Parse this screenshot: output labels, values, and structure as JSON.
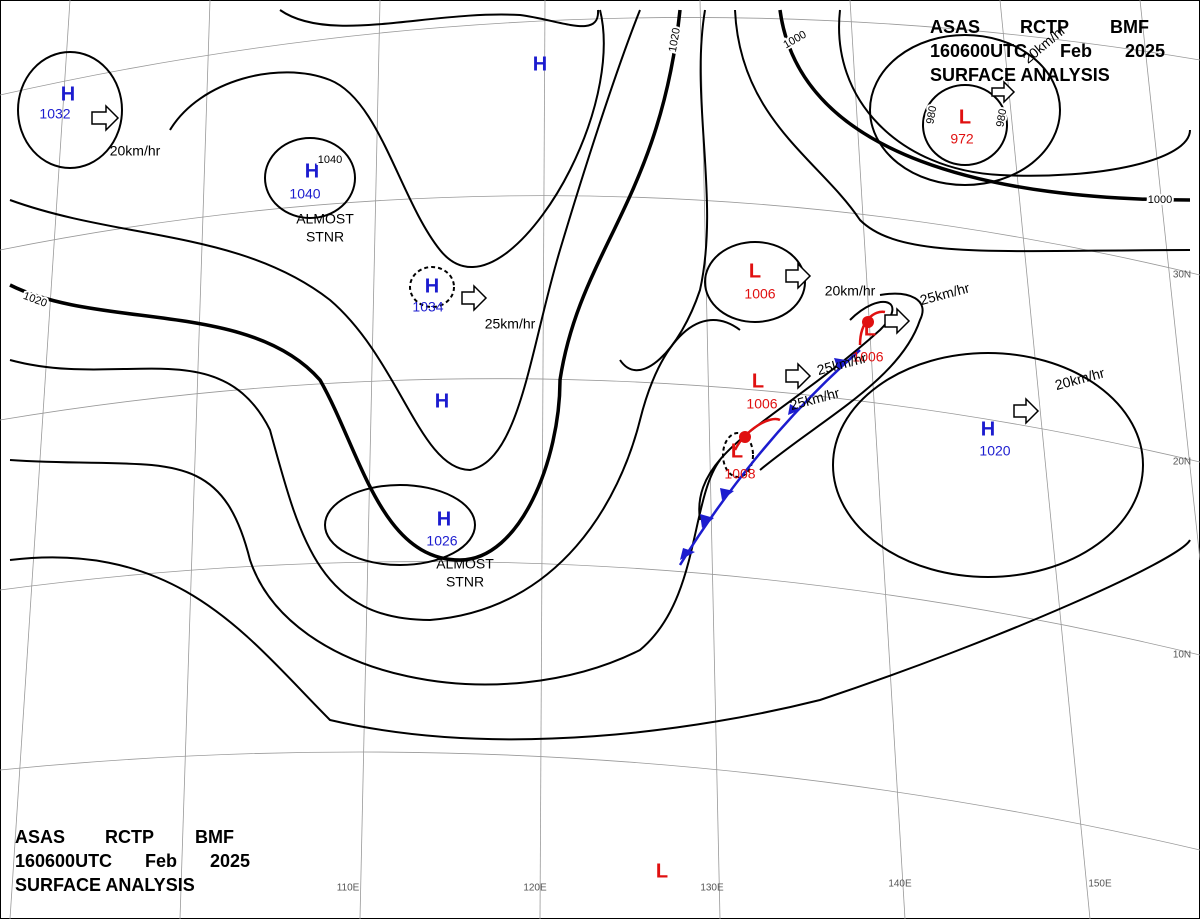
{
  "header": {
    "agency": [
      "ASAS",
      "RCTP",
      "BMF"
    ],
    "time": [
      "160600UTC",
      "Feb",
      "2025"
    ],
    "title": "SURFACE ANALYSIS"
  },
  "systems": [
    {
      "label": "H",
      "pressure": "1032",
      "color": "#1c1ccf"
    },
    {
      "label": "H",
      "pressure": "1040",
      "color": "#1c1ccf"
    },
    {
      "label": "H",
      "pressure": "1034",
      "color": "#1c1ccf"
    },
    {
      "label": "H",
      "color": "#1c1ccf"
    },
    {
      "label": "H",
      "color": "#1c1ccf"
    },
    {
      "label": "H",
      "pressure": "1026",
      "color": "#1c1ccf"
    },
    {
      "label": "H",
      "pressure": "1020",
      "color": "#1c1ccf"
    },
    {
      "label": "L",
      "pressure": "972",
      "color": "#e01010"
    },
    {
      "label": "L",
      "pressure": "1006",
      "color": "#e01010"
    },
    {
      "label": "L",
      "pressure": "1006",
      "color": "#e01010"
    },
    {
      "label": "L",
      "pressure": "1006",
      "color": "#e01010"
    },
    {
      "label": "L",
      "pressure": "1008",
      "color": "#e01010"
    },
    {
      "label": "L",
      "color": "#e01010"
    }
  ],
  "motions": [
    "20km/hr",
    "25km/hr",
    "20km/hr",
    "25km/hr",
    "25km/hr",
    "25km/hr",
    "20km/hr",
    "20km/hr"
  ],
  "stationary": [
    [
      "ALMOST",
      "STNR"
    ],
    [
      "ALMOST",
      "STNR"
    ]
  ],
  "isobar_labels": [
    "1040",
    "1020",
    "1000",
    "1000",
    "1020",
    "980",
    "980"
  ],
  "latitudes": [
    "30N",
    "20N",
    "10N"
  ],
  "longitudes": [
    "110E",
    "120E",
    "130E",
    "140E",
    "150E"
  ]
}
